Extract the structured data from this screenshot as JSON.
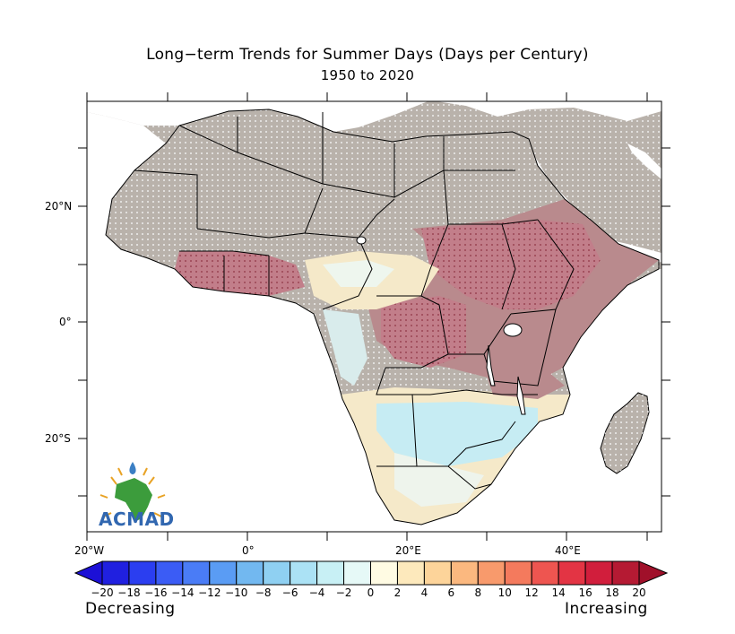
{
  "title": "Long−term Trends for Summer Days (Days per Century)",
  "subtitle": "1950 to 2020",
  "logo_text": "ACMAD",
  "lat_ticks": [
    "20°N",
    "0°",
    "20°S"
  ],
  "lon_ticks": [
    "20°W",
    "0°",
    "20°E",
    "40°E"
  ],
  "colorbar": {
    "labels": [
      "−20",
      "−18",
      "−16",
      "−14",
      "−12",
      "−10",
      "−8",
      "−6",
      "−4",
      "−2",
      "0",
      "2",
      "4",
      "6",
      "8",
      "10",
      "12",
      "14",
      "16",
      "18",
      "20"
    ],
    "colors": [
      "#2020e0",
      "#2b3ef0",
      "#3b5cf5",
      "#4a7cf6",
      "#5a9cf4",
      "#72b8f0",
      "#8fd0f2",
      "#abe2f5",
      "#c8f0f5",
      "#e6f9f7",
      "#fffbe3",
      "#fde9bc",
      "#fdd49a",
      "#fbb87f",
      "#f89a6c",
      "#f47a5d",
      "#ee5550",
      "#e33444",
      "#d11e3c",
      "#b51a33"
    ],
    "left_label": "Decreasing",
    "right_label": "Increasing"
  }
}
